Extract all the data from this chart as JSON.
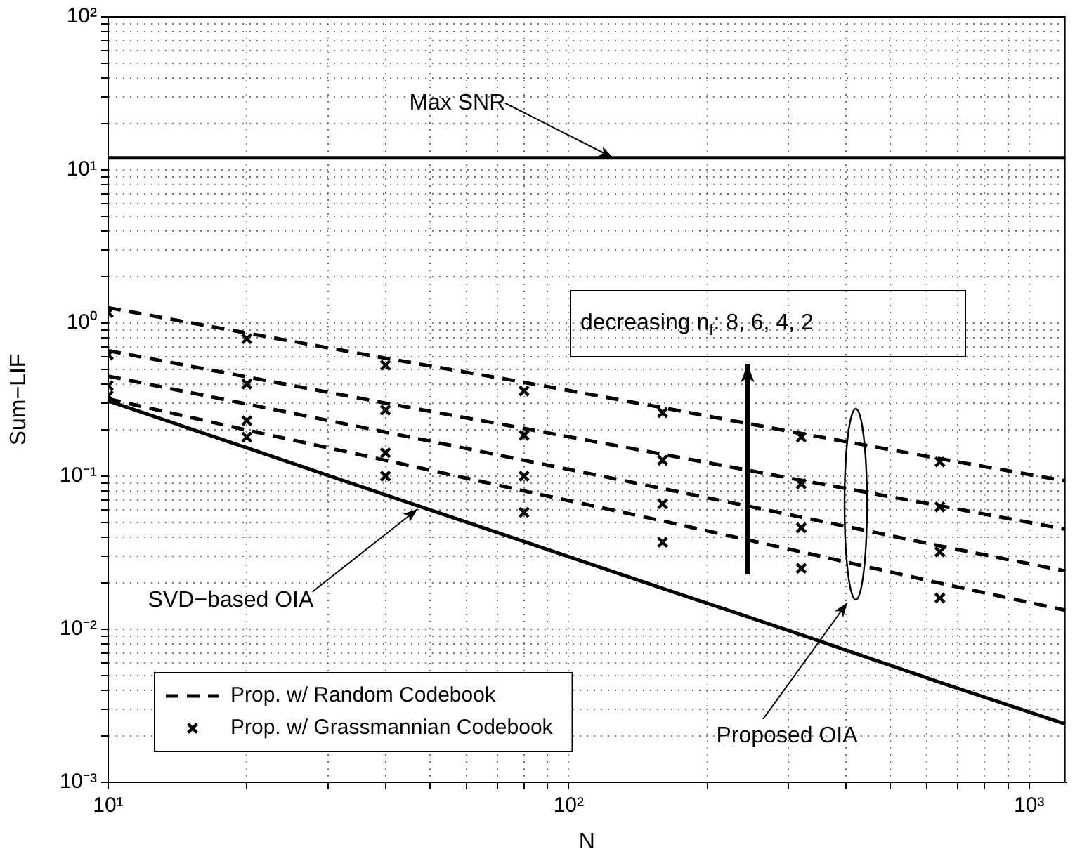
{
  "chart_data": {
    "type": "line",
    "xlabel": "N",
    "ylabel": "Sum−LIF",
    "log": "xy",
    "grid": true,
    "legend": "bottom left",
    "xlim": [
      10,
      1200
    ],
    "ylim": [
      0.001,
      100
    ],
    "xticks": [
      {
        "value": 10,
        "label": "10¹"
      },
      {
        "value": 20,
        "label": null
      },
      {
        "value": 30,
        "label": null
      },
      {
        "value": 40,
        "label": null
      },
      {
        "value": 50,
        "label": null
      },
      {
        "value": 60,
        "label": null
      },
      {
        "value": 70,
        "label": null
      },
      {
        "value": 80,
        "label": null
      },
      {
        "value": 90,
        "label": null
      },
      {
        "value": 100,
        "label": "10²"
      },
      {
        "value": 200,
        "label": null
      },
      {
        "value": 300,
        "label": null
      },
      {
        "value": 400,
        "label": null
      },
      {
        "value": 500,
        "label": null
      },
      {
        "value": 600,
        "label": null
      },
      {
        "value": 700,
        "label": null
      },
      {
        "value": 800,
        "label": null
      },
      {
        "value": 900,
        "label": null
      },
      {
        "value": 1000,
        "label": "10³"
      }
    ],
    "yticks": [
      {
        "value": 0.001,
        "label": "10⁻³"
      },
      {
        "value": 0.002,
        "label": null
      },
      {
        "value": 0.003,
        "label": null
      },
      {
        "value": 0.004,
        "label": null
      },
      {
        "value": 0.005,
        "label": null
      },
      {
        "value": 0.006,
        "label": null
      },
      {
        "value": 0.007,
        "label": null
      },
      {
        "value": 0.008,
        "label": null
      },
      {
        "value": 0.009,
        "label": null
      },
      {
        "value": 0.01,
        "label": "10⁻²"
      },
      {
        "value": 0.02,
        "label": null
      },
      {
        "value": 0.03,
        "label": null
      },
      {
        "value": 0.04,
        "label": null
      },
      {
        "value": 0.05,
        "label": null
      },
      {
        "value": 0.06,
        "label": null
      },
      {
        "value": 0.07,
        "label": null
      },
      {
        "value": 0.08,
        "label": null
      },
      {
        "value": 0.09,
        "label": null
      },
      {
        "value": 0.1,
        "label": "10⁻¹"
      },
      {
        "value": 0.2,
        "label": null
      },
      {
        "value": 0.3,
        "label": null
      },
      {
        "value": 0.4,
        "label": null
      },
      {
        "value": 0.5,
        "label": null
      },
      {
        "value": 0.6,
        "label": null
      },
      {
        "value": 0.7,
        "label": null
      },
      {
        "value": 0.8,
        "label": null
      },
      {
        "value": 0.9,
        "label": null
      },
      {
        "value": 1,
        "label": "10⁰"
      },
      {
        "value": 2,
        "label": null
      },
      {
        "value": 3,
        "label": null
      },
      {
        "value": 4,
        "label": null
      },
      {
        "value": 5,
        "label": null
      },
      {
        "value": 6,
        "label": null
      },
      {
        "value": 7,
        "label": null
      },
      {
        "value": 8,
        "label": null
      },
      {
        "value": 9,
        "label": null
      },
      {
        "value": 10,
        "label": "10¹"
      },
      {
        "value": 20,
        "label": null
      },
      {
        "value": 30,
        "label": null
      },
      {
        "value": 40,
        "label": null
      },
      {
        "value": 50,
        "label": null
      },
      {
        "value": 60,
        "label": null
      },
      {
        "value": 70,
        "label": null
      },
      {
        "value": 80,
        "label": null
      },
      {
        "value": 90,
        "label": null
      },
      {
        "value": 100,
        "label": "10²"
      }
    ],
    "series": [
      {
        "color": "#000000",
        "line_style": "solid",
        "x": [
          10,
          1200
        ],
        "values": [
          12,
          12
        ]
      },
      {
        "color": "#000000",
        "line_style": "solid",
        "x": [
          10,
          20,
          40,
          80,
          160,
          320,
          640,
          1200
        ],
        "values": [
          0.31,
          0.153,
          0.0755,
          0.0374,
          0.0185,
          0.0092,
          0.0045,
          0.0024
        ]
      },
      {
        "name": "Prop. w/ Random Codebook",
        "color": "#000000",
        "line_style": "dashed",
        "x": [
          10,
          20,
          40,
          80,
          160,
          320,
          640,
          1200
        ],
        "values": [
          1.26,
          0.86,
          0.59,
          0.41,
          0.28,
          0.19,
          0.13,
          0.093
        ]
      },
      {
        "color": "#000000",
        "line_style": "dashed",
        "x": [
          10,
          20,
          40,
          80,
          160,
          320,
          640,
          1200
        ],
        "values": [
          0.66,
          0.445,
          0.3,
          0.205,
          0.139,
          0.094,
          0.064,
          0.045
        ]
      },
      {
        "color": "#000000",
        "line_style": "dashed",
        "x": [
          10,
          20,
          40,
          80,
          160,
          320,
          640,
          1200
        ],
        "values": [
          0.45,
          0.296,
          0.194,
          0.127,
          0.083,
          0.054,
          0.035,
          0.024
        ]
      },
      {
        "color": "#000000",
        "line_style": "dashed",
        "x": [
          10,
          20,
          40,
          80,
          160,
          320,
          640,
          1200
        ],
        "values": [
          0.32,
          0.2,
          0.127,
          0.08,
          0.051,
          0.032,
          0.02,
          0.0133
        ]
      },
      {
        "name": "Prop. w/ Grassmannian Codebook",
        "type": "scatter",
        "marker": "cross",
        "color": "#000000",
        "x": [
          10,
          20,
          40,
          80,
          160,
          320,
          640
        ],
        "values": [
          1.17,
          0.79,
          0.53,
          0.36,
          0.26,
          0.18,
          0.124
        ]
      },
      {
        "type": "scatter",
        "marker": "cross",
        "color": "#000000",
        "x": [
          10,
          20,
          40,
          80,
          160,
          320,
          640
        ],
        "values": [
          0.62,
          0.4,
          0.27,
          0.185,
          0.127,
          0.089,
          0.063
        ]
      },
      {
        "type": "scatter",
        "marker": "cross",
        "color": "#000000",
        "x": [
          10,
          20,
          40,
          80,
          160,
          320,
          640
        ],
        "values": [
          0.39,
          0.23,
          0.142,
          0.1,
          0.066,
          0.046,
          0.032
        ]
      },
      {
        "type": "scatter",
        "marker": "cross",
        "color": "#000000",
        "x": [
          10,
          20,
          40,
          80,
          160,
          320,
          640
        ],
        "values": [
          0.335,
          0.18,
          0.1,
          0.058,
          0.037,
          0.025,
          0.016
        ]
      }
    ],
    "annotations": [
      {
        "text": "Max SNR",
        "x": 125,
        "y": 12
      },
      {
        "text": "SVD−based OIA",
        "x": 47,
        "y": 0.061
      },
      "Proposed OIA",
      "decreasing n$_{f}$: 8, 6, 4, 2"
    ]
  }
}
